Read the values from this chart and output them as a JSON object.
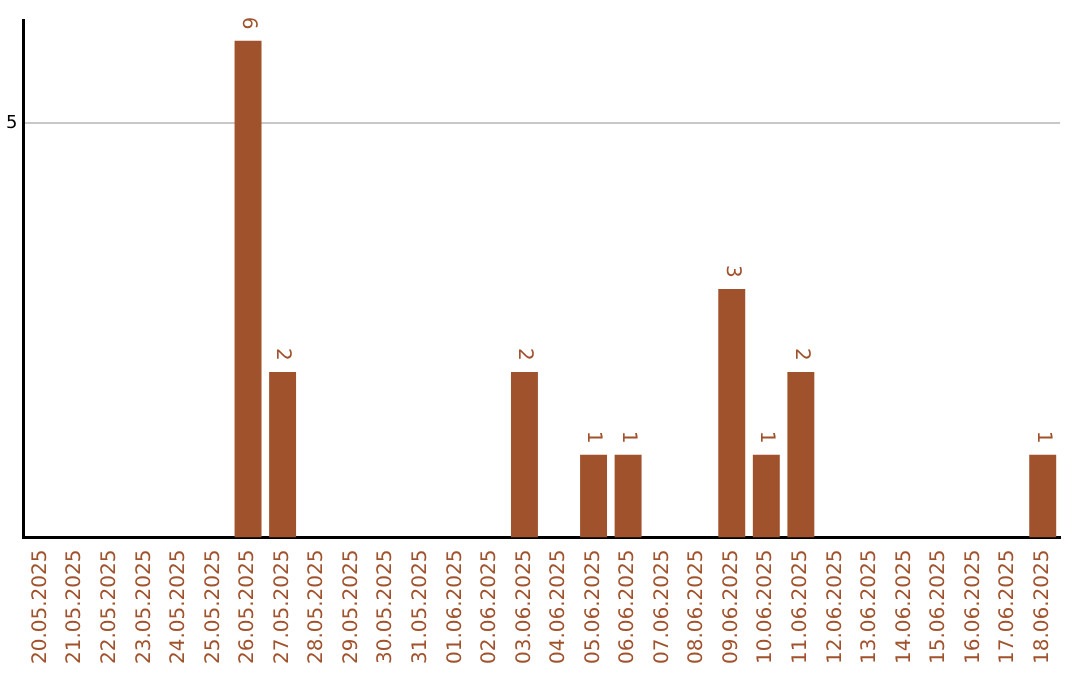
{
  "chart_data": {
    "type": "bar",
    "categories": [
      "20.05.2025",
      "21.05.2025",
      "22.05.2025",
      "23.05.2025",
      "24.05.2025",
      "25.05.2025",
      "26.05.2025",
      "27.05.2025",
      "28.05.2025",
      "29.05.2025",
      "30.05.2025",
      "31.05.2025",
      "01.06.2025",
      "02.06.2025",
      "03.06.2025",
      "04.06.2025",
      "05.06.2025",
      "06.06.2025",
      "07.06.2025",
      "08.06.2025",
      "09.06.2025",
      "10.06.2025",
      "11.06.2025",
      "12.06.2025",
      "13.06.2025",
      "14.06.2025",
      "15.06.2025",
      "16.06.2025",
      "17.06.2025",
      "18.06.2025"
    ],
    "values": [
      0,
      0,
      0,
      0,
      0,
      0,
      6,
      2,
      0,
      0,
      0,
      0,
      0,
      0,
      2,
      0,
      1,
      1,
      0,
      0,
      3,
      1,
      2,
      0,
      0,
      0,
      0,
      0,
      0,
      1
    ],
    "value_labels": [
      null,
      null,
      null,
      null,
      null,
      null,
      "6",
      "2",
      null,
      null,
      null,
      null,
      null,
      null,
      "2",
      null,
      "1",
      "1",
      null,
      null,
      "3",
      "1",
      "2",
      null,
      null,
      null,
      null,
      null,
      null,
      "1"
    ],
    "color": "#a0522d",
    "ylim": [
      0,
      6.25
    ],
    "yticks": [
      5
    ],
    "grid": "y",
    "legend": false
  }
}
